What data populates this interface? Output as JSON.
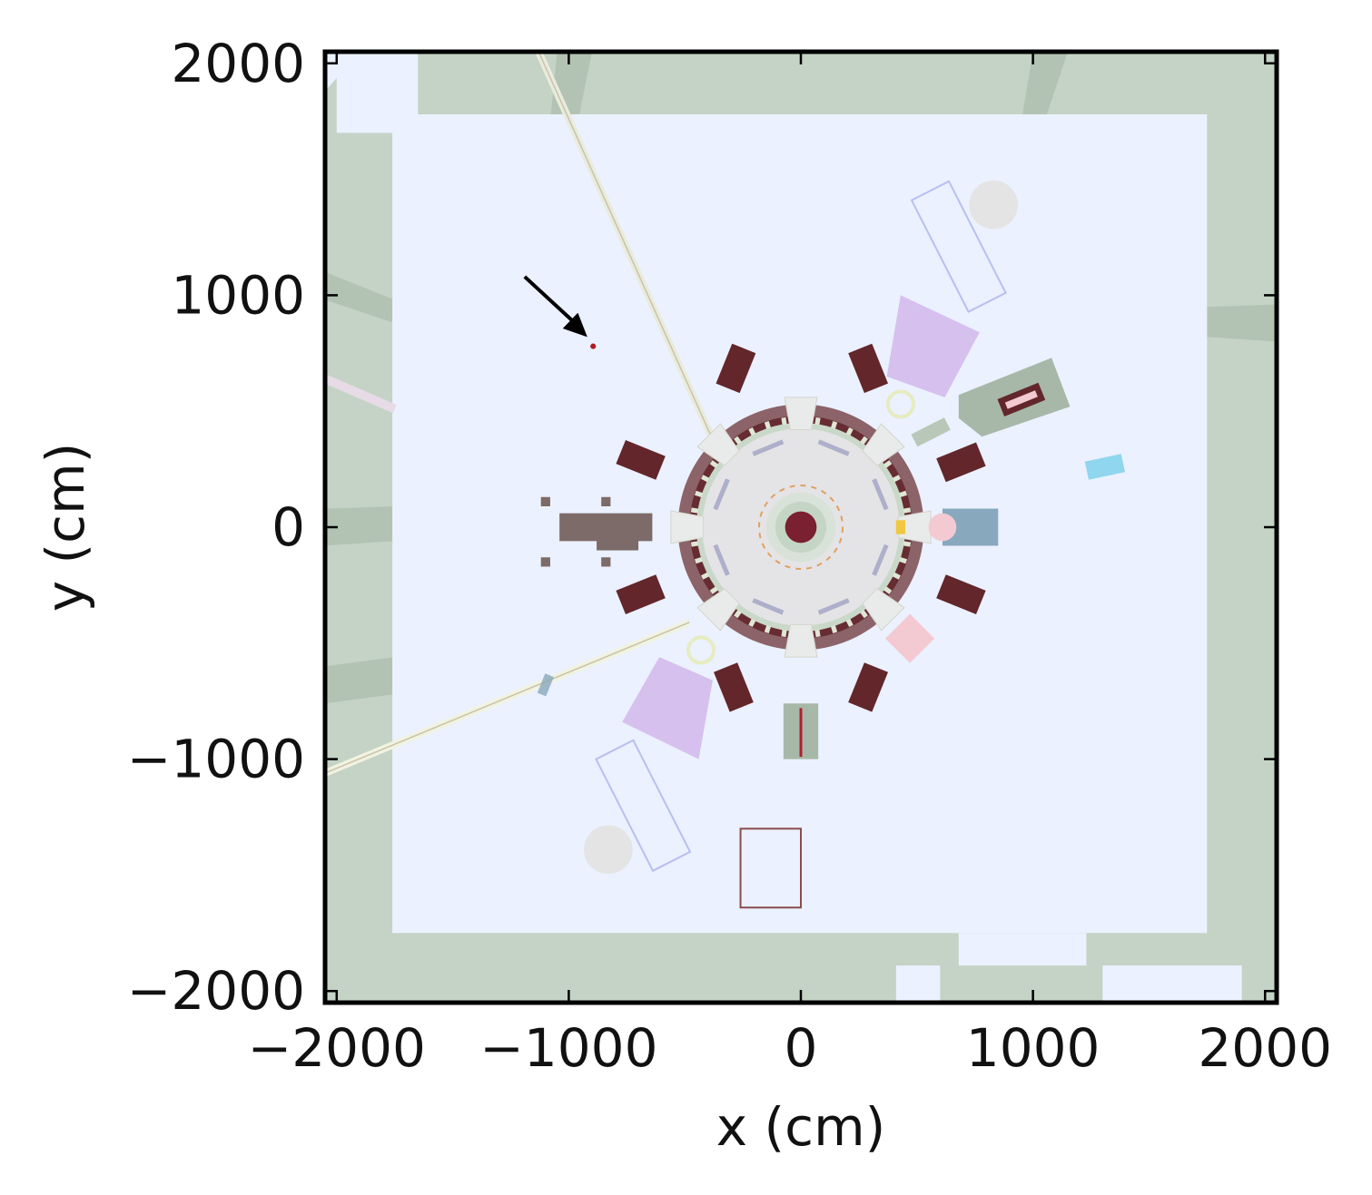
{
  "axes": {
    "xlabel": "x (cm)",
    "ylabel": "y (cm)",
    "xlim": [
      -2050,
      2050
    ],
    "ylim": [
      -2050,
      2050
    ],
    "xticks": [
      {
        "value": -2000,
        "label": "−2000"
      },
      {
        "value": -1000,
        "label": "−1000"
      },
      {
        "value": 0,
        "label": "0"
      },
      {
        "value": 1000,
        "label": "1000"
      },
      {
        "value": 2000,
        "label": "2000"
      }
    ],
    "yticks": [
      {
        "value": -2000,
        "label": "−2000"
      },
      {
        "value": -1000,
        "label": "−1000"
      },
      {
        "value": 0,
        "label": "0"
      },
      {
        "value": 1000,
        "label": "1000"
      },
      {
        "value": 2000,
        "label": "2000"
      }
    ]
  },
  "colors": {
    "wall": "#c4d3c5",
    "wall_band": "#b2c3b4",
    "hall_floor": "#ebf1ff",
    "magnet": "#62262b",
    "ring": "#7a4a4e",
    "core_disk": "#e4e4e6",
    "target": "#7a2030",
    "lilac": "#d6c0ee",
    "pink": "#f3c9d2",
    "steel_blue": "#88a8bd",
    "light_cyan": "#8fd6ee",
    "greyish_brown": "#7c6b68",
    "sage": "#a8b8a8",
    "arrow": "#000000",
    "marker": "#b01c22"
  },
  "annotation": {
    "arrow_from": [
      -1190,
      1080
    ],
    "arrow_to": [
      -920,
      820
    ],
    "marker_point": [
      -895,
      780
    ]
  }
}
